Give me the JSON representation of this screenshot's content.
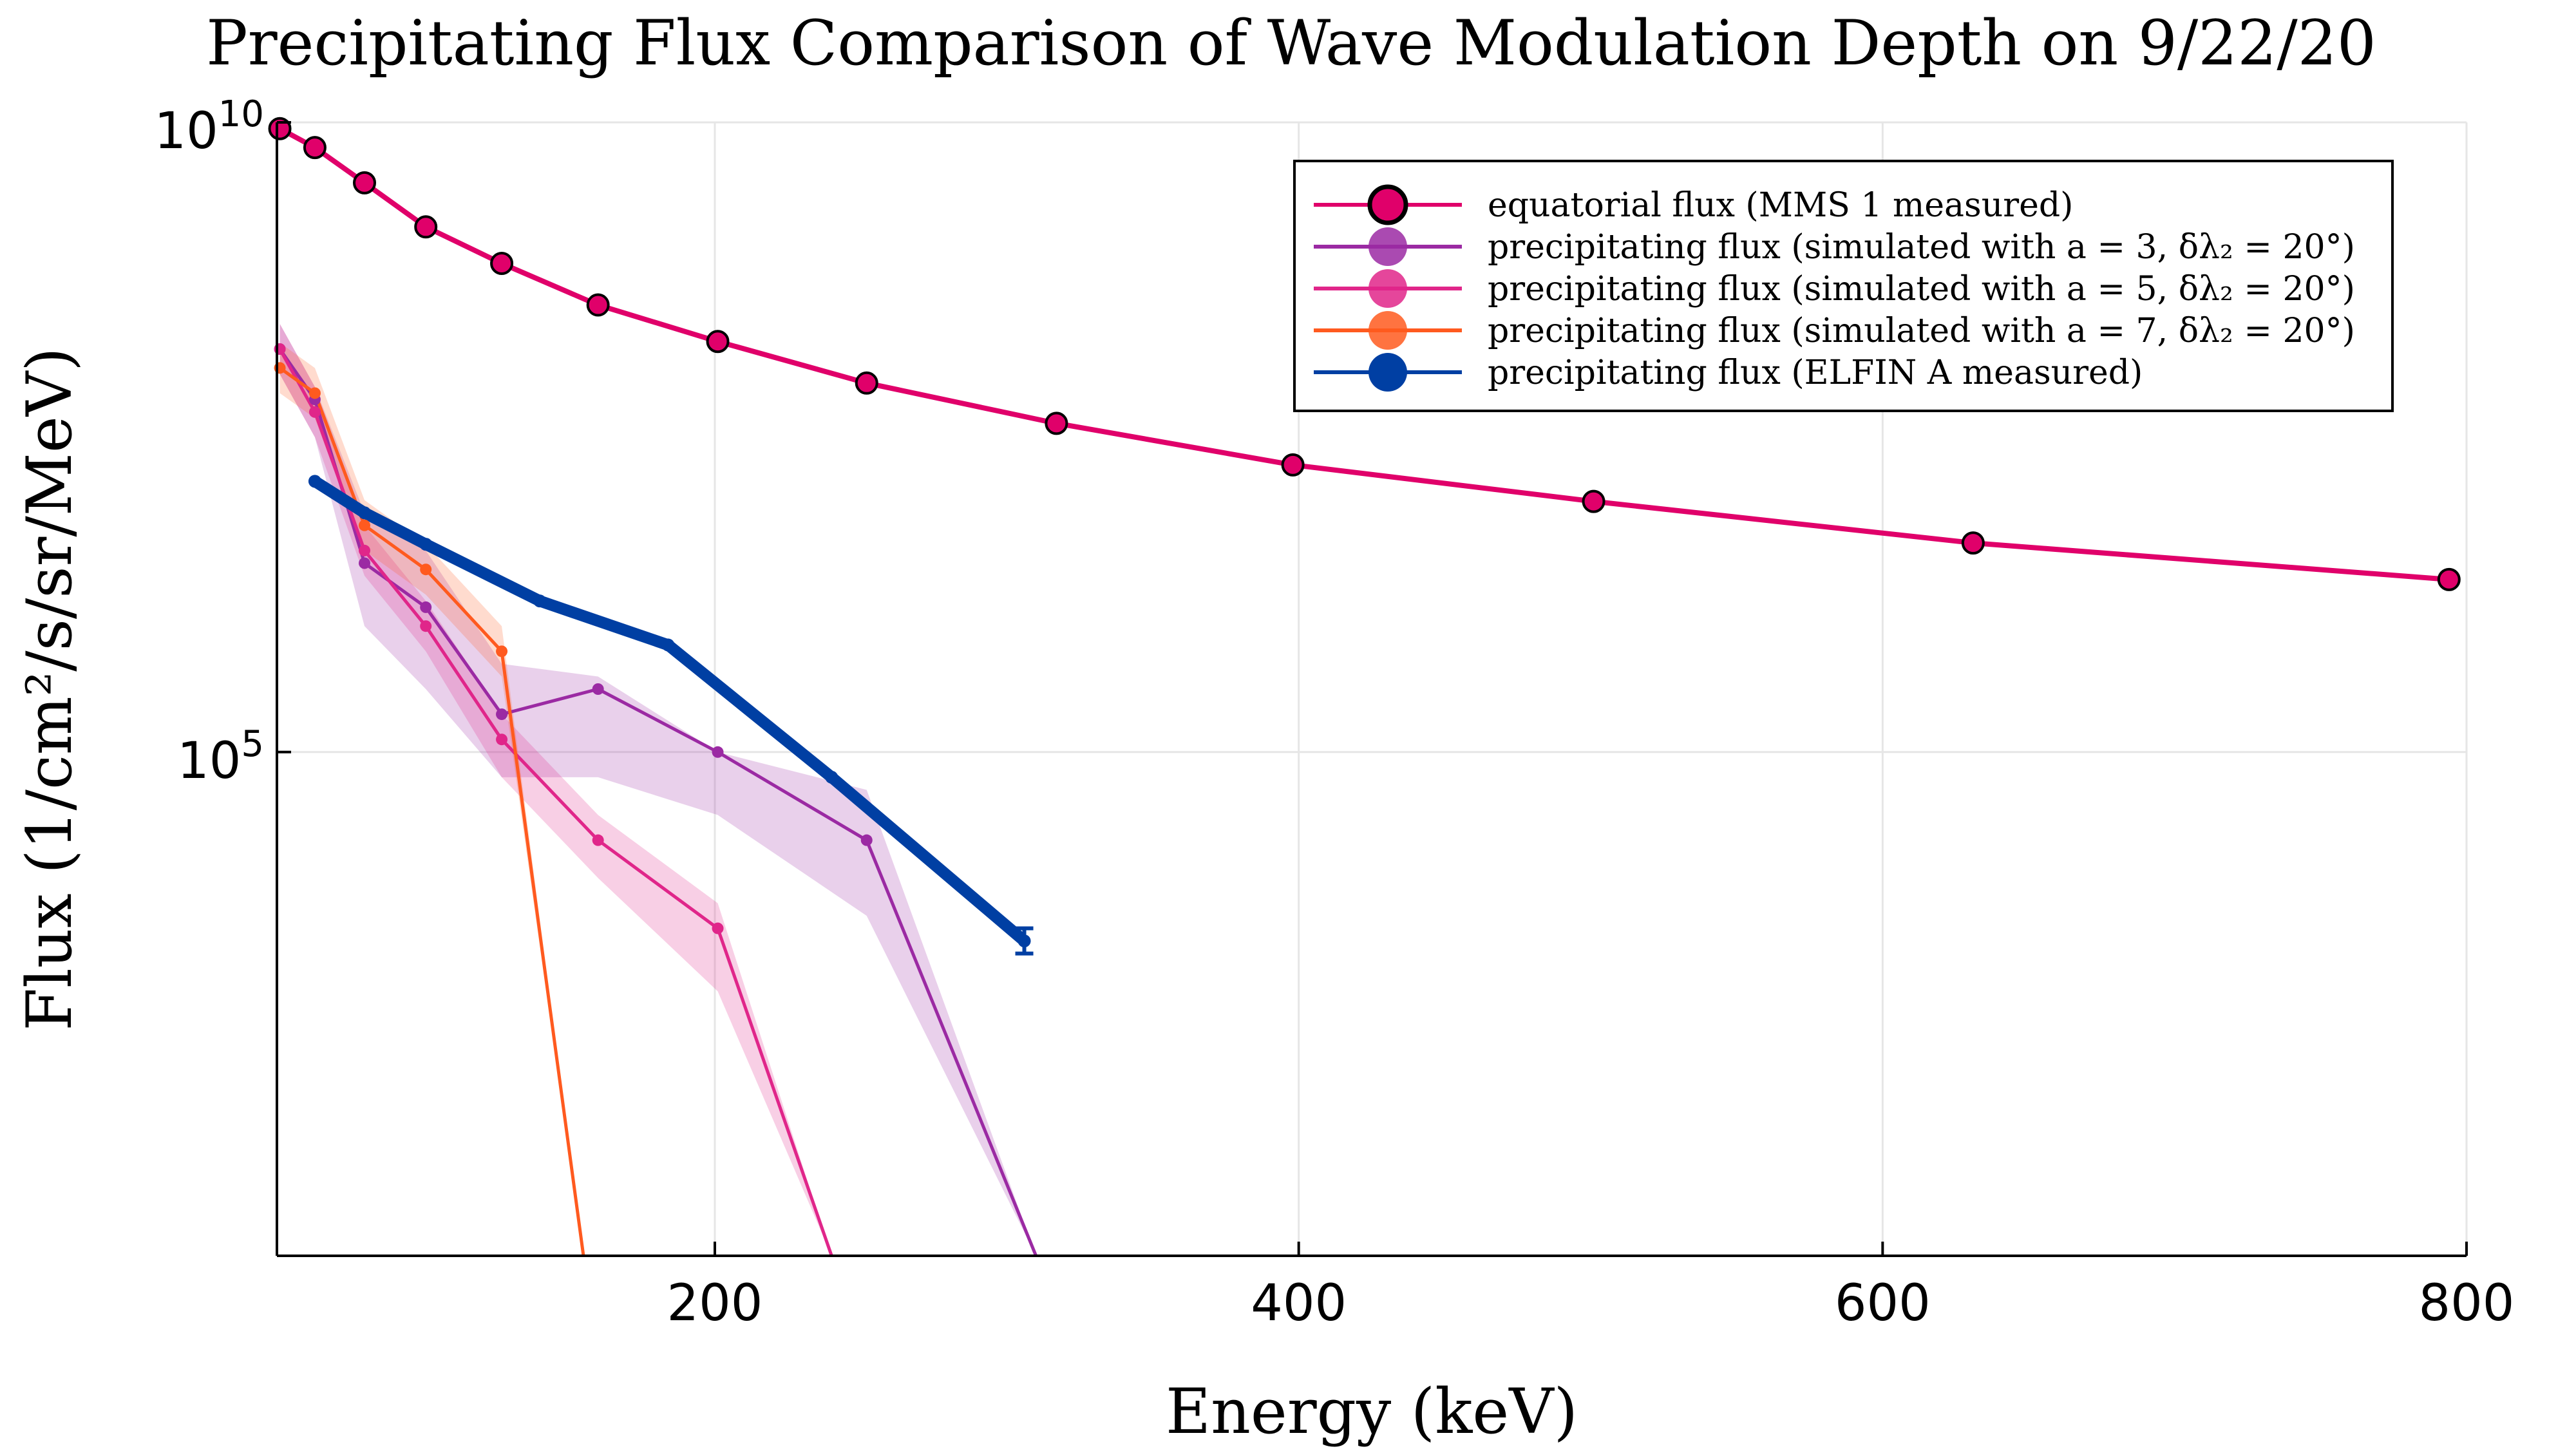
{
  "chart_data": {
    "type": "line",
    "title": "Precipitating Flux Comparison of Wave Modulation Depth on 9/22/20",
    "xlabel": "Energy (keV)",
    "ylabel": "Flux (1/cm²/s/sr/MeV)",
    "xlim": [
      50,
      800
    ],
    "ylog": true,
    "ylim_log10": [
      1,
      10
    ],
    "x_ticks": [
      200,
      400,
      600,
      800
    ],
    "y_ticks": [
      {
        "base": "10",
        "exp": "5",
        "value": 100000
      },
      {
        "base": "10",
        "exp": "10",
        "value": 10000000000
      }
    ],
    "grid": true,
    "legend_position": "top-right",
    "series": [
      {
        "name": "equatorial flux (MMS 1 measured)",
        "color": "#e0006a",
        "marker": "circle-large",
        "x": [
          51,
          63,
          80,
          101,
          127,
          160,
          201,
          252,
          317,
          398,
          501,
          631,
          794
        ],
        "y_log10": [
          9.95,
          9.8,
          9.52,
          9.17,
          8.88,
          8.55,
          8.26,
          7.93,
          7.61,
          7.28,
          6.99,
          6.66,
          6.37
        ]
      },
      {
        "name": "precipitating flux (simulated with a = 3, δλ₂ = 20°)",
        "color": "#9b2aa3",
        "marker": "dot",
        "x": [
          51,
          63,
          80,
          101,
          127,
          160,
          201,
          252,
          310
        ],
        "y_log10": [
          8.2,
          7.8,
          6.5,
          6.15,
          5.3,
          5.5,
          5.0,
          4.3,
          1.0
        ],
        "band_lo_log10": [
          8.0,
          7.5,
          6.0,
          5.5,
          4.8,
          4.8,
          4.5,
          3.7,
          1.0
        ],
        "band_hi_log10": [
          8.4,
          7.9,
          6.9,
          6.6,
          5.7,
          5.6,
          5.0,
          4.7,
          1.0
        ]
      },
      {
        "name": "precipitating flux (simulated with a = 5, δλ₂ = 20°)",
        "color": "#e0268a",
        "marker": "dot",
        "x": [
          51,
          63,
          80,
          101,
          127,
          160,
          201,
          240
        ],
        "y_log10": [
          8.2,
          7.7,
          6.6,
          6.0,
          5.1,
          4.3,
          3.6,
          1.0
        ],
        "band_lo_log10": [
          8.0,
          7.5,
          6.4,
          5.8,
          4.8,
          4.0,
          3.1,
          1.0
        ],
        "band_hi_log10": [
          8.4,
          7.9,
          6.8,
          6.2,
          5.3,
          4.5,
          3.8,
          1.0
        ]
      },
      {
        "name": "precipitating flux (simulated with a = 7, δλ₂ = 20°)",
        "color": "#ff5a1f",
        "marker": "dot",
        "x": [
          51,
          63,
          80,
          101,
          127,
          155
        ],
        "y_log10": [
          8.05,
          7.85,
          6.8,
          6.45,
          5.8,
          1.0
        ],
        "band_lo_log10": [
          7.85,
          7.65,
          6.6,
          6.25,
          5.6,
          1.0
        ],
        "band_hi_log10": [
          8.25,
          8.05,
          7.0,
          6.65,
          6.0,
          1.0
        ]
      },
      {
        "name": "precipitating flux (ELFIN A measured)",
        "color": "#003fa3",
        "marker": "circle-large",
        "x": [
          63,
          80,
          101,
          140,
          184,
          240,
          306
        ],
        "y_log10": [
          7.15,
          6.9,
          6.65,
          6.2,
          5.85,
          4.8,
          3.5
        ],
        "error_last": [
          3.4,
          3.6
        ]
      }
    ]
  }
}
